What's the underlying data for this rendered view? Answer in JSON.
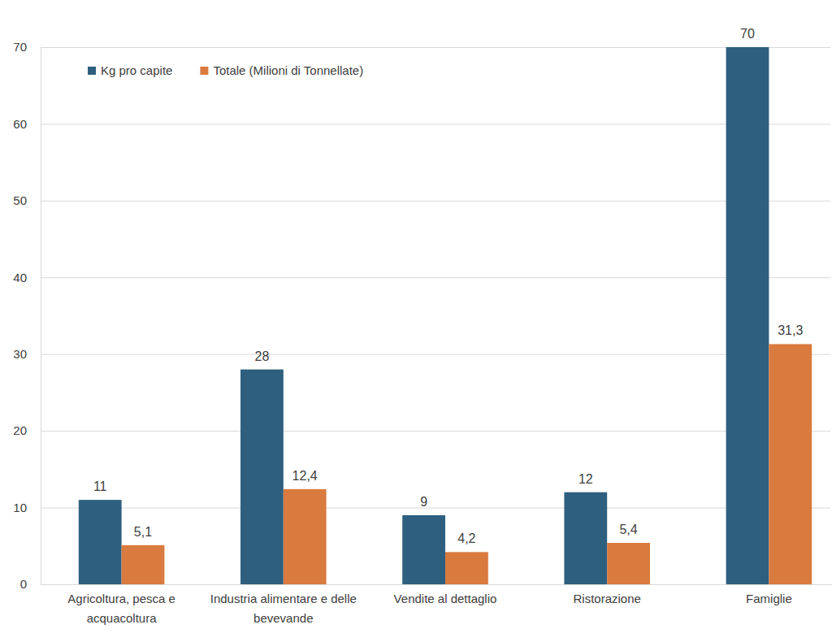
{
  "chart_data": {
    "type": "bar",
    "categories": [
      "Agricoltura, pesca e acquacoltura",
      "Industria alimentare e delle bevevande",
      "Vendite al dettaglio",
      "Ristorazione",
      "Famiglie"
    ],
    "series": [
      {
        "name": "Kg pro capite",
        "color": "#2e5f7f",
        "values": [
          11,
          28,
          9,
          12,
          70
        ]
      },
      {
        "name": "Totale (Milioni di Tonnellate)",
        "color": "#d97a3e",
        "values": [
          5.1,
          12.4,
          4.2,
          5.4,
          31.3
        ],
        "value_labels": [
          "5,1",
          "12,4",
          "4,2",
          "5,4",
          "31,3"
        ]
      }
    ],
    "ylim": [
      0,
      70
    ],
    "yticks": [
      0,
      10,
      20,
      30,
      40,
      50,
      60,
      70
    ],
    "grid": true,
    "legend": "upper left",
    "data_labels": true
  }
}
